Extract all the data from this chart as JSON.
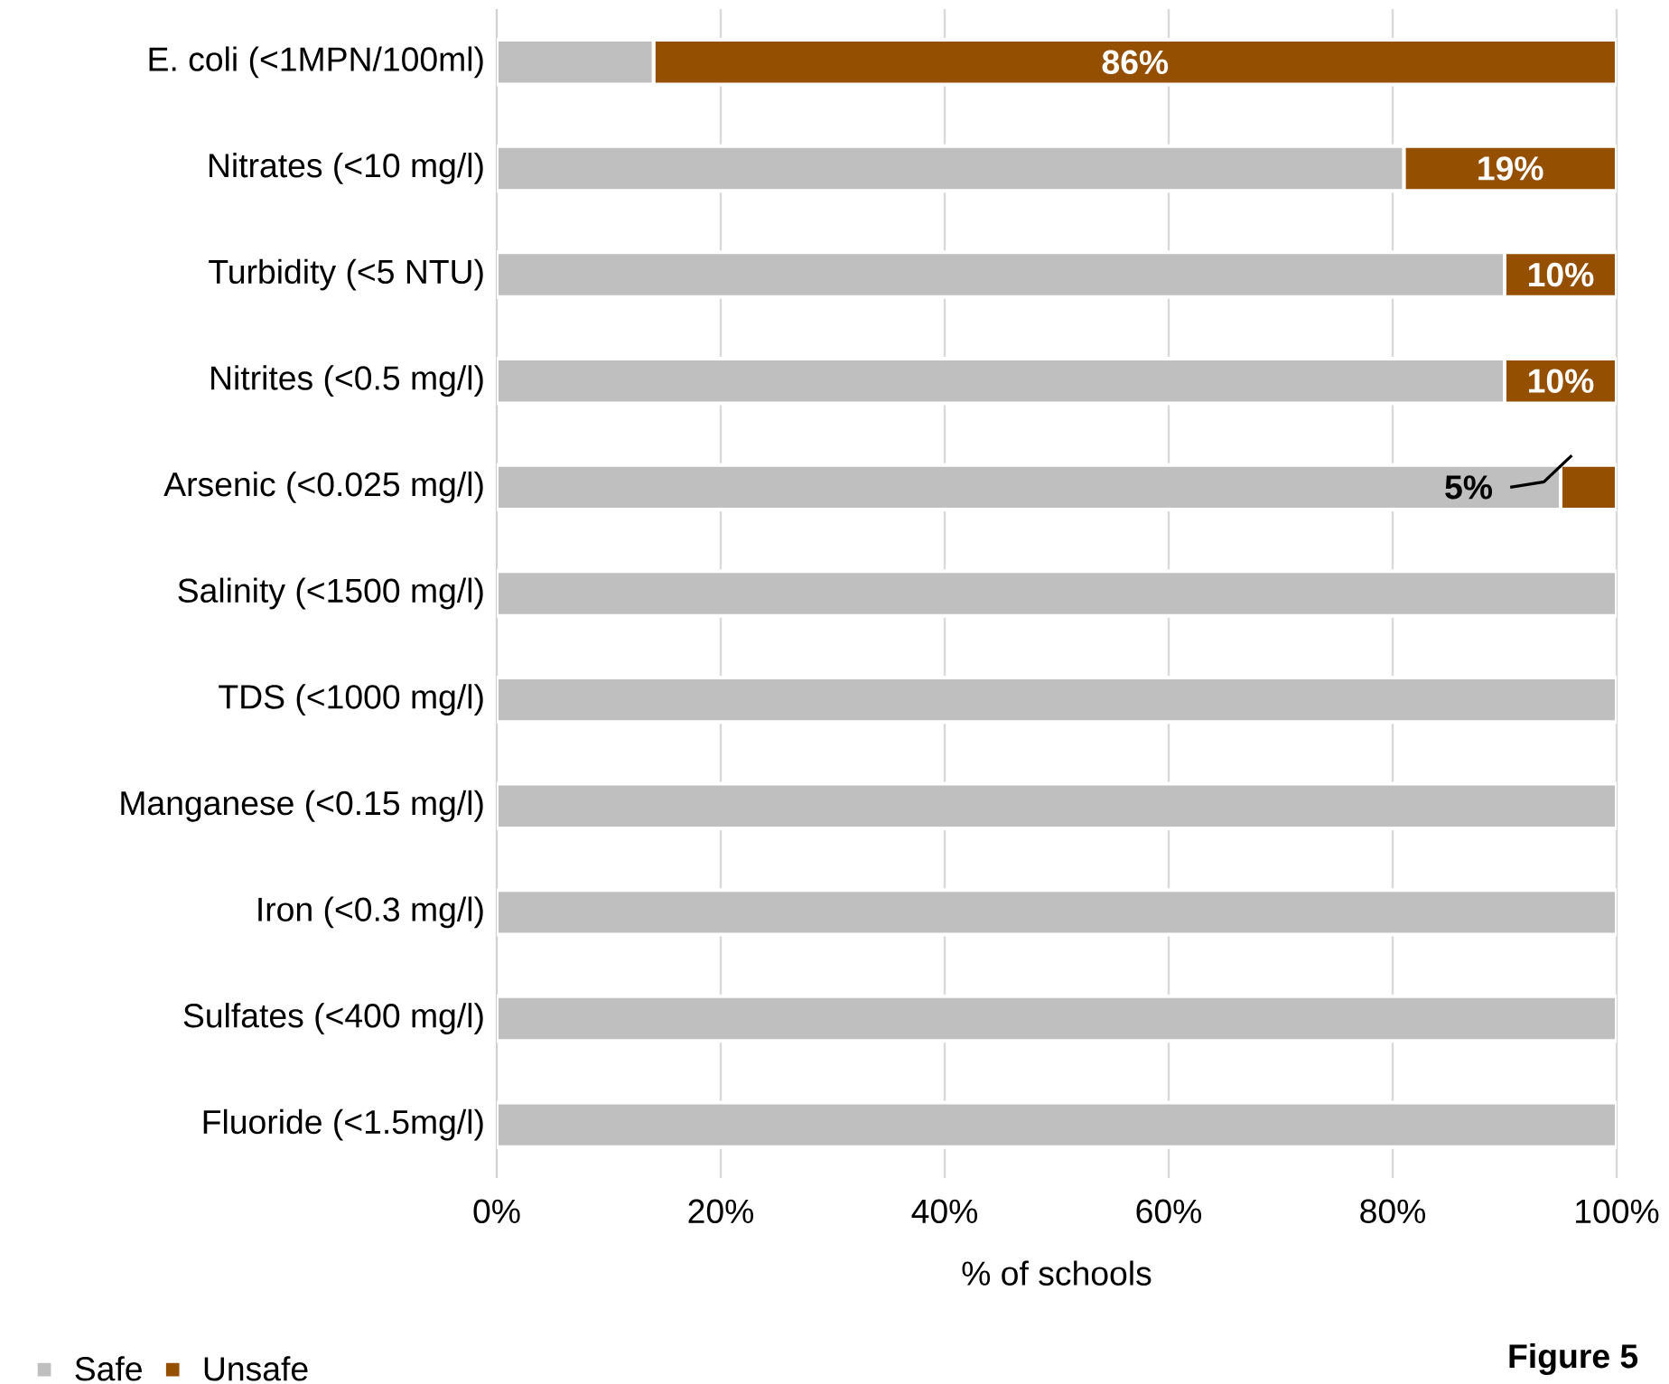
{
  "chart_data": {
    "type": "bar",
    "orientation": "horizontal",
    "stacked": true,
    "categories": [
      "E. coli (<1MPN/100ml)",
      "Nitrates (<10 mg/l)",
      "Turbidity (<5 NTU)",
      "Nitrites (<0.5 mg/l)",
      "Arsenic (<0.025 mg/l)",
      "Salinity (<1500 mg/l)",
      "TDS (<1000 mg/l)",
      "Manganese (<0.15 mg/l)",
      "Iron (<0.3 mg/l)",
      "Sulfates (<400 mg/l)",
      "Fluoride (<1.5mg/l)"
    ],
    "series": [
      {
        "name": "Safe",
        "color": "#bfbfbf",
        "values": [
          14,
          81,
          90,
          90,
          95,
          100,
          100,
          100,
          100,
          100,
          100
        ]
      },
      {
        "name": "Unsafe",
        "color": "#954f00",
        "values": [
          86,
          19,
          10,
          10,
          5,
          0,
          0,
          0,
          0,
          0,
          0
        ],
        "value_labels": [
          "86%",
          "19%",
          "10%",
          "10%",
          "5%",
          null,
          null,
          null,
          null,
          null,
          null
        ]
      }
    ],
    "xlim": [
      0,
      100
    ],
    "xticks": [
      {
        "value": 0,
        "label": "0%"
      },
      {
        "value": 20,
        "label": "20%"
      },
      {
        "value": 40,
        "label": "40%"
      },
      {
        "value": 60,
        "label": "60%"
      },
      {
        "value": 80,
        "label": "80%"
      },
      {
        "value": 100,
        "label": "100%"
      }
    ],
    "xlabel": "% of schools",
    "grid": "x",
    "legend": "bottom left",
    "annotations": [
      "Figure 5"
    ]
  }
}
